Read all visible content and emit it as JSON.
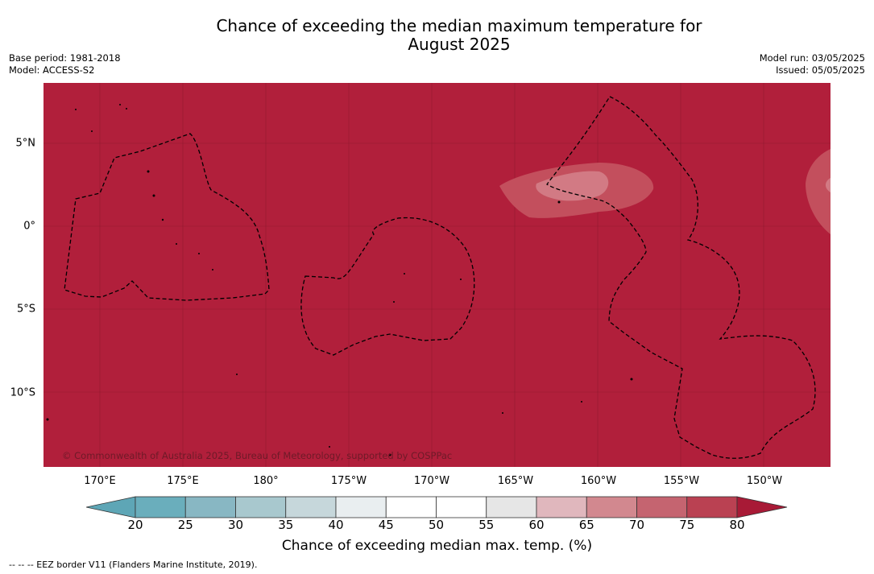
{
  "header": {
    "title_line1": "Chance of exceeding the median maximum temperature for",
    "title_line2": "August 2025",
    "base_period": "Base period: 1981-2018",
    "model": "Model: ACCESS-S2",
    "model_run": "Model run: 03/05/2025",
    "issued": "Issued: 05/05/2025"
  },
  "map": {
    "background_probability_band": "75-80%+",
    "colors": {
      "land_sea": "#b11f3b",
      "warm_patch_outer": "#c34f5d",
      "warm_patch_inner": "#d27a84",
      "eez_border": "#000000",
      "grid": "#7a1526"
    },
    "lon_labels": [
      "170°E",
      "175°E",
      "180°",
      "175°W",
      "170°W",
      "165°W",
      "160°W",
      "155°W",
      "150°W"
    ],
    "lat_labels": [
      "5°N",
      "0°",
      "5°S",
      "10°S"
    ],
    "credit": "© Commonwealth of Australia 2025, Bureau of Meteorology, supported by COSPPac"
  },
  "colorbar": {
    "label": "Chance of exceeding median max. temp. (%)",
    "ticks": [
      "20",
      "25",
      "30",
      "35",
      "40",
      "45",
      "50",
      "55",
      "60",
      "65",
      "70",
      "75",
      "80"
    ],
    "colors": [
      "#5ea6b6",
      "#6aaebc",
      "#88b7c3",
      "#a8c8ce",
      "#c6d7db",
      "#e9eef0",
      "#ffffff",
      "#ffffff",
      "#e6e6e6",
      "#e0b7bd",
      "#d2888f",
      "#c56470",
      "#ba4152",
      "#a81a36"
    ]
  },
  "footnote": "--  --  -- EEZ border V11 (Flanders Marine Institute, 2019)."
}
